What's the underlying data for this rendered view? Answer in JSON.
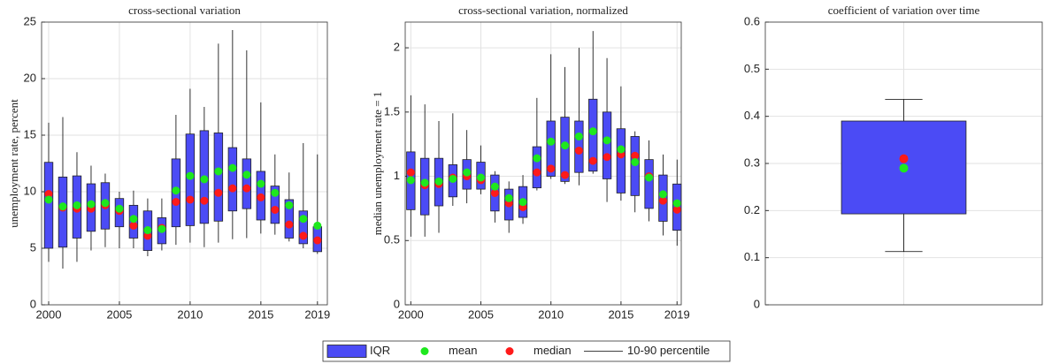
{
  "chart_data": [
    {
      "type": "box",
      "title": "cross-sectional variation",
      "y_label": "unemployment rate, percent",
      "x": [
        2000,
        2001,
        2002,
        2003,
        2004,
        2005,
        2006,
        2007,
        2008,
        2009,
        2010,
        2011,
        2012,
        2013,
        2014,
        2015,
        2016,
        2017,
        2018,
        2019
      ],
      "p10": [
        3.8,
        3.2,
        3.8,
        4.8,
        5.1,
        5.0,
        5.0,
        4.3,
        4.8,
        5.3,
        5.5,
        5.1,
        5.5,
        5.8,
        5.9,
        6.3,
        6.2,
        5.6,
        5.0,
        4.5
      ],
      "q1": [
        5.0,
        5.1,
        5.9,
        6.5,
        6.7,
        6.9,
        5.9,
        4.8,
        5.4,
        6.9,
        7.0,
        7.2,
        7.4,
        8.3,
        8.5,
        7.5,
        7.2,
        5.9,
        5.4,
        4.7
      ],
      "q3": [
        12.6,
        11.3,
        11.4,
        10.7,
        10.8,
        9.4,
        8.8,
        8.3,
        7.7,
        12.9,
        15.1,
        15.4,
        15.2,
        13.9,
        12.9,
        11.8,
        10.5,
        9.3,
        8.3,
        6.9
      ],
      "p90": [
        16.1,
        16.6,
        13.5,
        12.3,
        11.6,
        10.0,
        10.1,
        9.4,
        9.4,
        16.8,
        19.1,
        17.5,
        23.1,
        24.3,
        22.5,
        17.9,
        13.3,
        11.7,
        14.3,
        13.3
      ],
      "mean": [
        9.3,
        8.7,
        8.8,
        8.9,
        9.0,
        8.5,
        7.6,
        6.6,
        6.7,
        10.1,
        11.4,
        11.1,
        11.8,
        12.1,
        11.5,
        10.7,
        9.9,
        8.8,
        7.6,
        7.0
      ],
      "median": [
        9.8,
        8.6,
        8.5,
        8.5,
        8.8,
        8.3,
        7.0,
        6.1,
        6.8,
        9.1,
        9.3,
        9.2,
        9.9,
        10.3,
        10.3,
        9.5,
        8.4,
        7.1,
        6.1,
        5.7
      ],
      "xlim": [
        1999.5,
        2019.7
      ],
      "xticks": [
        2000,
        2005,
        2010,
        2015,
        2019
      ],
      "ylim": [
        0,
        25
      ],
      "yticks": [
        0,
        5,
        10,
        15,
        20,
        25
      ],
      "grid": true
    },
    {
      "type": "box",
      "title": "cross-sectional variation, normalized",
      "y_label": "median unemployment rate = 1",
      "x": [
        2000,
        2001,
        2002,
        2003,
        2004,
        2005,
        2006,
        2007,
        2008,
        2009,
        2010,
        2011,
        2012,
        2013,
        2014,
        2015,
        2016,
        2017,
        2018,
        2019
      ],
      "p10": [
        0.53,
        0.53,
        0.56,
        0.77,
        0.79,
        0.86,
        0.64,
        0.56,
        0.63,
        0.89,
        0.98,
        0.94,
        0.93,
        1.02,
        0.8,
        0.81,
        0.72,
        0.65,
        0.54,
        0.46
      ],
      "q1": [
        0.74,
        0.7,
        0.77,
        0.84,
        0.9,
        0.9,
        0.73,
        0.66,
        0.68,
        0.91,
        1.0,
        0.96,
        1.03,
        1.04,
        0.98,
        0.87,
        0.85,
        0.75,
        0.65,
        0.58
      ],
      "q3": [
        1.19,
        1.14,
        1.14,
        1.09,
        1.13,
        1.11,
        1.01,
        0.9,
        0.92,
        1.23,
        1.43,
        1.46,
        1.43,
        1.6,
        1.5,
        1.37,
        1.31,
        1.13,
        1.01,
        0.94
      ],
      "p90": [
        1.63,
        1.56,
        1.43,
        1.49,
        1.36,
        1.24,
        1.04,
        0.96,
        1.01,
        1.61,
        1.95,
        1.85,
        2.0,
        2.13,
        1.92,
        1.7,
        1.35,
        1.28,
        1.17,
        1.13
      ],
      "mean": [
        0.97,
        0.95,
        0.96,
        0.98,
        1.03,
        0.99,
        0.92,
        0.83,
        0.8,
        1.14,
        1.27,
        1.24,
        1.31,
        1.35,
        1.28,
        1.21,
        1.11,
        0.99,
        0.86,
        0.79
      ],
      "median": [
        1.03,
        0.93,
        0.94,
        0.99,
        1.0,
        0.97,
        0.87,
        0.79,
        0.76,
        1.03,
        1.06,
        1.01,
        1.2,
        1.12,
        1.15,
        1.17,
        1.16,
        1.0,
        0.81,
        0.74
      ],
      "xlim": [
        1999.6,
        2019.3
      ],
      "xticks": [
        2000,
        2005,
        2010,
        2015,
        2019
      ],
      "ylim": [
        0,
        2.2
      ],
      "yticks": [
        0,
        0.5,
        1,
        1.5,
        2
      ],
      "grid": true
    },
    {
      "type": "box",
      "title": "coefficient of variation over time",
      "categories": [
        null
      ],
      "p10": [
        0.113
      ],
      "q1": [
        0.193
      ],
      "q3": [
        0.39
      ],
      "p90": [
        0.436
      ],
      "mean": [
        0.29
      ],
      "median": [
        0.31
      ],
      "ylim": [
        0,
        0.6
      ],
      "yticks": [
        0,
        0.1,
        0.2,
        0.3,
        0.4,
        0.5,
        0.6
      ],
      "grid": true,
      "whisker_caps": true
    }
  ],
  "legend": {
    "items": [
      {
        "label": "IQR",
        "color": "#4b4bf5"
      },
      {
        "label": "mean",
        "color": "#1ee81e"
      },
      {
        "label": "median",
        "color": "#ff1a1a"
      },
      {
        "label": "10-90 percentile",
        "color": "#000000"
      }
    ]
  }
}
